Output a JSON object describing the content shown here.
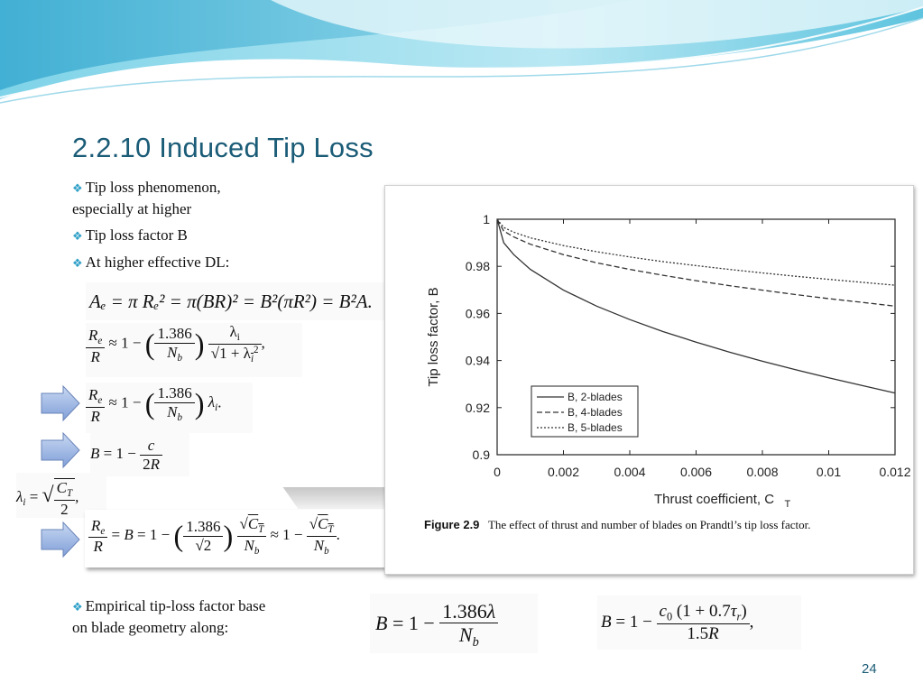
{
  "slide": {
    "title": "2.2.10 Induced Tip Loss",
    "page_number": "24",
    "accent_color": "#1b5c77",
    "bullet_color": "#2fa0c8"
  },
  "bullets": [
    {
      "line1": "Tip loss phenomenon,",
      "line2": "especially at higher"
    },
    {
      "line1": "Tip loss factor B"
    },
    {
      "line1": "At higher effective DL:"
    }
  ],
  "bullet_bottom": {
    "line1": "Empirical tip-loss  factor base",
    "line2": "on blade geometry along:"
  },
  "bullet_icon": "diamond-cluster-icon",
  "arrow_icon": "right-arrow-icon",
  "equations": {
    "area": "Aₑ = π Rₑ² = π(BR)² = B²(πR²) = B²A.",
    "num_1386": "1.386",
    "num_1": "1",
    "num_2": "2",
    "num_1p5": "1.5",
    "num_07": "0.7",
    "sqrt2": "√2"
  },
  "chart_data": {
    "type": "line",
    "xlabel": "Thrust coefficient, C",
    "xlabel_sub": "T",
    "ylabel": "Tip loss factor, B",
    "xlim": [
      0,
      0.012
    ],
    "ylim": [
      0.9,
      1.0
    ],
    "x_ticks": [
      "0",
      "0.002",
      "0.004",
      "0.006",
      "0.008",
      "0.01",
      "0.012"
    ],
    "y_ticks": [
      "0.9",
      "0.92",
      "0.94",
      "0.96",
      "0.98",
      "1"
    ],
    "legend_position": "bottom-left",
    "grid": false,
    "x": [
      0,
      0.0002,
      0.0005,
      0.001,
      0.002,
      0.003,
      0.004,
      0.005,
      0.006,
      0.007,
      0.008,
      0.009,
      0.01,
      0.011,
      0.012
    ],
    "series": [
      {
        "name": "B, 2-blades",
        "style": "solid",
        "values": [
          1.0,
          0.99,
          0.985,
          0.9787,
          0.9699,
          0.9631,
          0.9574,
          0.9523,
          0.9478,
          0.9436,
          0.9397,
          0.9361,
          0.9327,
          0.9294,
          0.9262
        ]
      },
      {
        "name": "B, 4-blades",
        "style": "dashed",
        "values": [
          1.0,
          0.995,
          0.9925,
          0.9894,
          0.985,
          0.9815,
          0.9787,
          0.9762,
          0.9739,
          0.9718,
          0.9699,
          0.968,
          0.9663,
          0.9647,
          0.9631
        ]
      },
      {
        "name": "B, 5-blades",
        "style": "dotted",
        "values": [
          1.0,
          0.9965,
          0.9945,
          0.9921,
          0.9888,
          0.9862,
          0.984,
          0.982,
          0.9803,
          0.9787,
          0.9772,
          0.9758,
          0.9745,
          0.9732,
          0.972
        ]
      }
    ],
    "caption_label": "Figure 2.9",
    "caption_text": "The effect of thrust and number of blades on Prandtl’s tip loss factor."
  }
}
